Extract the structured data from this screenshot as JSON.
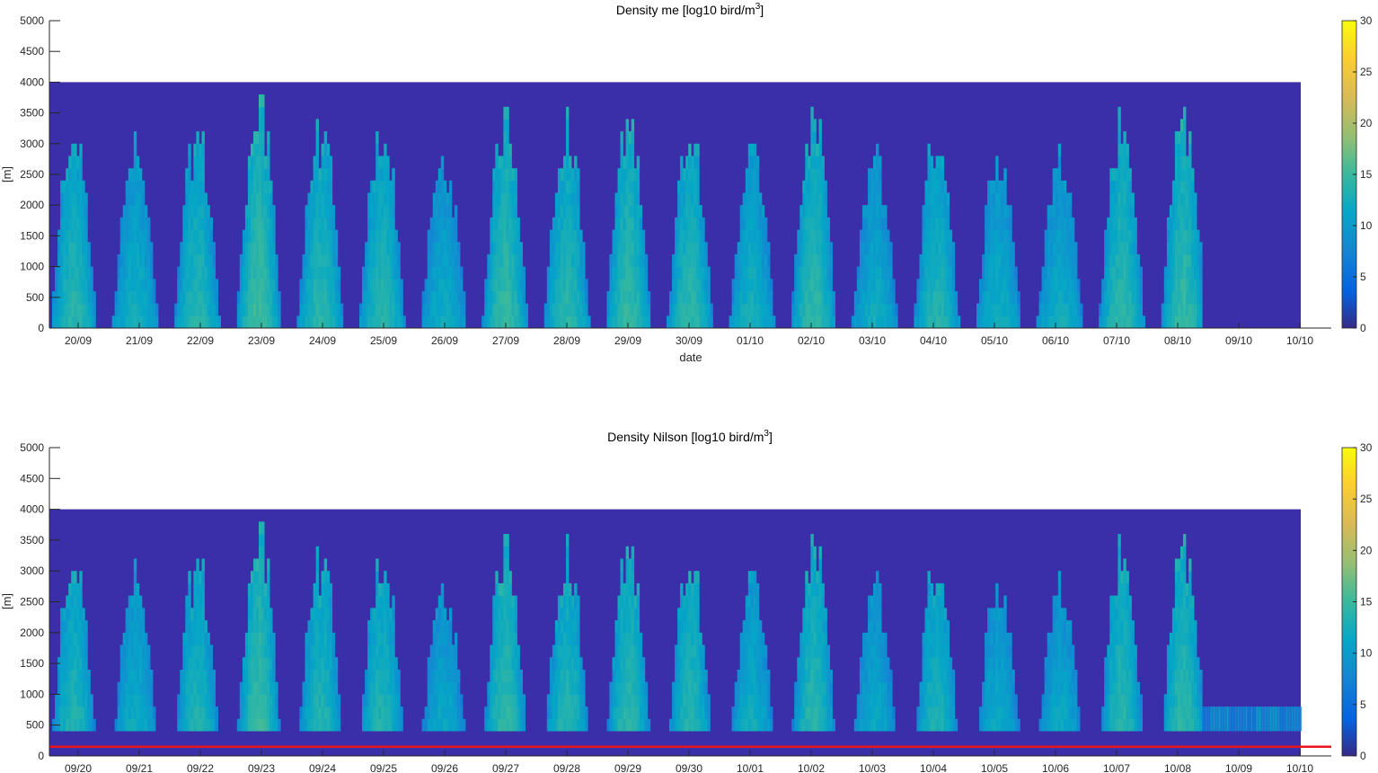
{
  "chart_data": [
    {
      "type": "heatmap",
      "title": "Density me [log10 bird/m",
      "title_sup": "3",
      "title_end": "]",
      "xlabel": "date",
      "ylabel": "[m]",
      "x_tick_labels": [
        "20/09",
        "21/09",
        "22/09",
        "23/09",
        "24/09",
        "25/09",
        "26/09",
        "27/09",
        "28/09",
        "29/09",
        "30/09",
        "01/10",
        "02/10",
        "03/10",
        "04/10",
        "05/10",
        "06/10",
        "07/10",
        "08/10",
        "09/10",
        "10/10"
      ],
      "yticks": [
        0,
        500,
        1000,
        1500,
        2000,
        2500,
        3000,
        3500,
        4000,
        4500,
        5000
      ],
      "ylim": [
        0,
        5000
      ],
      "data_top_altitude": 4000,
      "data_end_day_index": 18.4,
      "low_band_top": 0,
      "colorbar": {
        "ticks": [
          0,
          5,
          10,
          15,
          20,
          25,
          30
        ],
        "range": [
          0,
          30
        ],
        "colormap": "parula"
      },
      "red_line_altitude": null
    },
    {
      "type": "heatmap",
      "title": "Density Nilson [log10 bird/m",
      "title_sup": "3",
      "title_end": "]",
      "xlabel": "",
      "ylabel": "[m]",
      "x_tick_labels": [
        "09/20",
        "09/21",
        "09/22",
        "09/23",
        "09/24",
        "09/25",
        "09/26",
        "09/27",
        "09/28",
        "09/29",
        "09/30",
        "10/01",
        "10/02",
        "10/03",
        "10/04",
        "10/05",
        "10/06",
        "10/07",
        "10/08",
        "10/09",
        "10/10"
      ],
      "yticks": [
        0,
        500,
        1000,
        1500,
        2000,
        2500,
        3000,
        3500,
        4000,
        4500,
        5000
      ],
      "ylim": [
        0,
        5000
      ],
      "data_top_altitude": 4000,
      "data_end_day_index": 18.4,
      "low_band_top": 400,
      "colorbar": {
        "ticks": [
          0,
          5,
          10,
          15,
          20,
          25,
          30
        ],
        "range": [
          0,
          30
        ],
        "colormap": "parula"
      },
      "red_line_altitude": 150
    }
  ],
  "colors": {
    "background_fill": "#3a2fa8",
    "red_line": "#e8141e",
    "axis": "#262626"
  }
}
